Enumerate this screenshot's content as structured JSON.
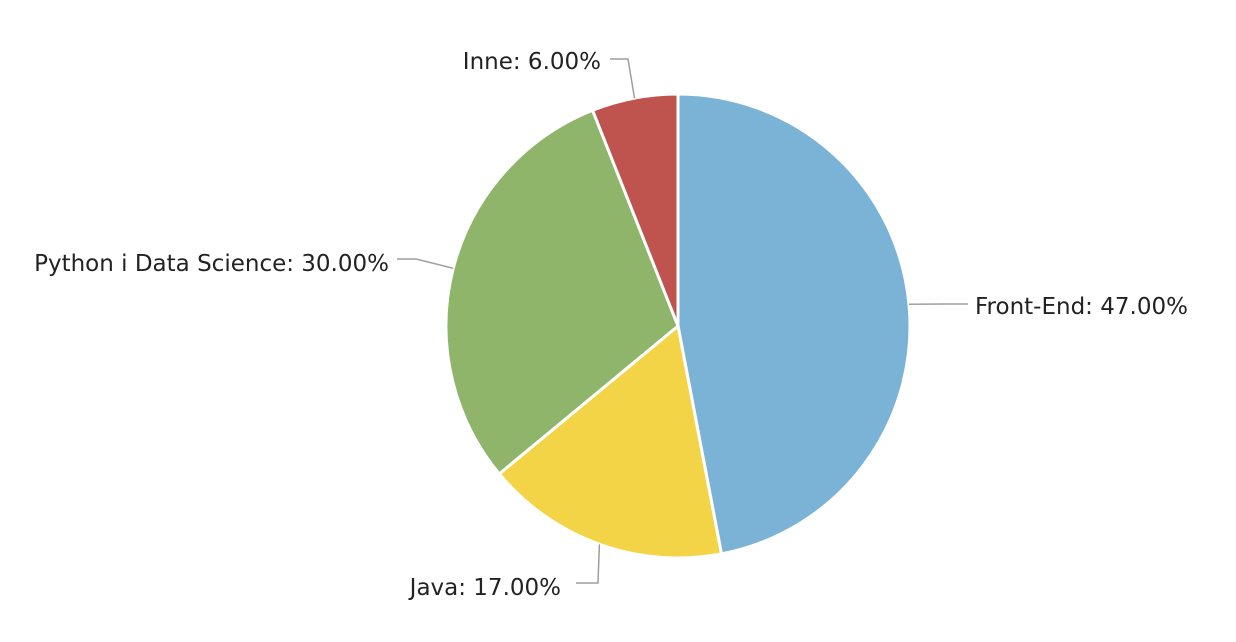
{
  "chart_data": {
    "type": "pie",
    "title": "",
    "start_angle_deg": 0,
    "direction": "clockwise",
    "slices": [
      {
        "label": "Front-End: 47.00%",
        "name": "Front-End",
        "value": 47.0,
        "color": "#7bb3d7"
      },
      {
        "label": "Java: 17.00%",
        "name": "Java",
        "value": 17.0,
        "color": "#f4d447"
      },
      {
        "label": "Python i Data Science: 30.00%",
        "name": "Python i Data Science",
        "value": 30.0,
        "color": "#8fb56b"
      },
      {
        "label": "Inne: 6.00%",
        "name": "Inne",
        "value": 6.0,
        "color": "#bf534e"
      }
    ],
    "legend": "none"
  }
}
